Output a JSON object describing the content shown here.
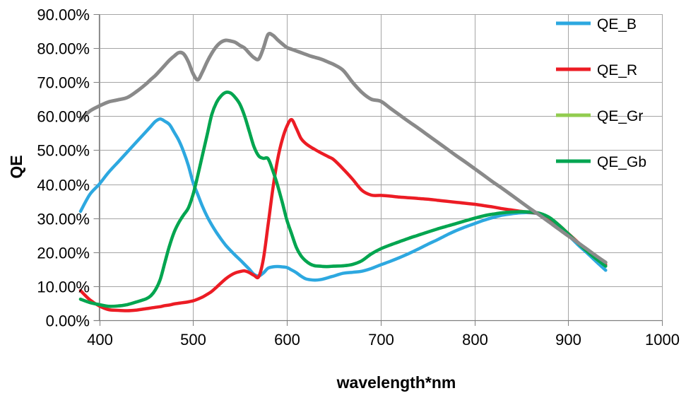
{
  "chart_data": {
    "type": "line",
    "title": "",
    "xlabel": "wavelength*nm",
    "ylabel": "QE",
    "x_range": [
      380,
      1000
    ],
    "y_range_percent": [
      0,
      90
    ],
    "grid": true,
    "legend_position": "right",
    "x_ticks": [
      400,
      500,
      600,
      700,
      800,
      900,
      1000
    ],
    "y_tick_values": [
      0,
      10,
      20,
      30,
      40,
      50,
      60,
      70,
      80,
      90
    ],
    "y_tick_labels": [
      "0.00%",
      "10.00%",
      "20.00%",
      "30.00%",
      "40.00%",
      "50.00%",
      "60.00%",
      "70.00%",
      "80.00%",
      "90.00%"
    ],
    "wavelengths_nm": [
      380,
      390,
      400,
      410,
      420,
      430,
      440,
      450,
      455,
      460,
      465,
      470,
      475,
      480,
      485,
      490,
      495,
      500,
      505,
      510,
      515,
      520,
      525,
      530,
      535,
      540,
      545,
      550,
      555,
      560,
      565,
      570,
      575,
      580,
      585,
      590,
      595,
      600,
      605,
      610,
      615,
      620,
      625,
      630,
      635,
      640,
      645,
      650,
      660,
      670,
      680,
      690,
      700,
      710,
      720,
      730,
      740,
      750,
      760,
      770,
      780,
      790,
      800,
      810,
      820,
      830,
      840,
      850,
      860,
      870,
      880,
      890,
      900,
      910,
      920,
      930,
      940
    ],
    "series": [
      {
        "id": "qe_b",
        "name": "QE_B",
        "color": "#2DA8E0",
        "in_legend": true,
        "values": [
          32,
          37,
          40,
          43.5,
          46.5,
          49.5,
          52.5,
          55.5,
          57,
          58.5,
          59.2,
          58.5,
          57.5,
          55.2,
          52.8,
          49.5,
          45.5,
          40.5,
          37,
          33.5,
          30.5,
          28,
          25.8,
          23.8,
          22,
          20.5,
          19.1,
          17.8,
          16.4,
          15,
          13.5,
          13,
          13.9,
          15.3,
          15.7,
          15.8,
          15.7,
          15.5,
          14.8,
          14,
          13,
          12.2,
          11.9,
          11.8,
          11.9,
          12.2,
          12.6,
          13,
          13.8,
          14.1,
          14.4,
          15.2,
          16.3,
          17.3,
          18.4,
          19.6,
          20.9,
          22.3,
          23.6,
          25,
          26.3,
          27.4,
          28.4,
          29.4,
          30.2,
          30.9,
          31.3,
          31.6,
          31.6,
          31.2,
          29.8,
          27.5,
          25,
          22.3,
          19.8,
          17.2,
          14.7
        ]
      },
      {
        "id": "qe_r",
        "name": "QE_R",
        "color": "#EC1C24",
        "in_legend": true,
        "values": [
          8.7,
          6,
          4.2,
          3.1,
          2.9,
          2.8,
          3,
          3.4,
          3.6,
          3.8,
          4,
          4.3,
          4.5,
          4.8,
          5,
          5.2,
          5.4,
          5.7,
          6.2,
          6.8,
          7.6,
          8.5,
          9.7,
          11,
          12.2,
          13.2,
          13.9,
          14.3,
          14.5,
          14,
          13.2,
          12.8,
          18,
          28,
          38.5,
          47,
          53,
          57,
          59,
          56.5,
          53.5,
          52,
          51,
          50.2,
          49.4,
          48.7,
          48,
          47.2,
          44.5,
          41.5,
          38.2,
          36.8,
          36.7,
          36.5,
          36.2,
          36,
          35.8,
          35.6,
          35.3,
          35,
          34.7,
          34.4,
          34.1,
          33.7,
          33.3,
          32.8,
          32.4,
          32,
          31.7,
          31.3,
          30,
          28,
          25.5,
          23,
          20.5,
          18.3,
          16.3
        ]
      },
      {
        "id": "qe_gr",
        "name": "QE_Gr",
        "color": "#92CC4F",
        "in_legend": true,
        "values": [
          6.2,
          5.2,
          4.6,
          4.1,
          4.2,
          4.6,
          5.4,
          6.3,
          7.2,
          9,
          12,
          17,
          22,
          26,
          28.8,
          31,
          33,
          37,
          42.5,
          48.5,
          54.5,
          60.5,
          64,
          66,
          67,
          66.8,
          65.5,
          63.5,
          60,
          55.5,
          51,
          48.3,
          47.6,
          47.5,
          44,
          39.8,
          34.8,
          29.5,
          25.5,
          21.5,
          19,
          17.5,
          16.5,
          16,
          15.9,
          15.8,
          15.8,
          15.9,
          16,
          16.4,
          17.5,
          19.5,
          21,
          22.1,
          23.1,
          24.1,
          25,
          25.9,
          26.8,
          27.6,
          28.4,
          29.2,
          30,
          30.7,
          31.2,
          31.6,
          31.8,
          31.9,
          31.8,
          31.4,
          30.2,
          28,
          25.4,
          22.8,
          20.3,
          18,
          15.9
        ]
      },
      {
        "id": "qe_gb",
        "name": "QE_Gb",
        "color": "#00A551",
        "in_legend": true,
        "values": [
          6.2,
          5.2,
          4.6,
          4.1,
          4.2,
          4.6,
          5.4,
          6.3,
          7.2,
          9,
          12,
          17,
          22,
          26,
          28.8,
          31,
          33,
          37,
          42.5,
          48.5,
          54.5,
          60.5,
          64,
          66,
          67,
          66.8,
          65.5,
          63.5,
          60,
          55.5,
          51,
          48.3,
          47.6,
          47.5,
          44,
          39.8,
          34.8,
          29.5,
          25.5,
          21.5,
          19,
          17.5,
          16.5,
          16,
          15.9,
          15.8,
          15.8,
          15.9,
          16,
          16.4,
          17.5,
          19.5,
          21,
          22.1,
          23.1,
          24.1,
          25,
          25.9,
          26.8,
          27.6,
          28.4,
          29.2,
          30,
          30.7,
          31.2,
          31.6,
          31.8,
          31.9,
          31.8,
          31.4,
          30.2,
          28,
          25.4,
          22.8,
          20.3,
          18,
          15.9
        ]
      },
      {
        "id": "gray_unlabeled",
        "name": "",
        "color": "#8A8A8A",
        "in_legend": false,
        "values": [
          59,
          61.5,
          63,
          64.2,
          64.8,
          65.5,
          67.3,
          69.5,
          70.8,
          72,
          73.5,
          75,
          76.5,
          77.7,
          78.7,
          78.3,
          76,
          72.5,
          70.7,
          73,
          76,
          78.5,
          80.5,
          81.8,
          82.3,
          82.1,
          81.7,
          80.8,
          80,
          78.5,
          77.2,
          76.8,
          80,
          84,
          83.8,
          82.5,
          81.3,
          80.2,
          79.7,
          79.2,
          78.7,
          78.2,
          77.7,
          77.3,
          76.9,
          76.4,
          75.8,
          75.2,
          73.5,
          70,
          67,
          65,
          64.4,
          62.4,
          60.4,
          58.4,
          56.5,
          54.5,
          52.5,
          50.5,
          48.5,
          46.6,
          44.6,
          42.6,
          40.6,
          38.7,
          36.7,
          34.7,
          32.7,
          30.8,
          28.8,
          26.8,
          24.8,
          22.9,
          20.9,
          18.9,
          17
        ]
      }
    ],
    "colors": {
      "gridline": "#A5A5A5",
      "axis": "#7F7F7F",
      "text": "#000000",
      "background": "#FFFFFF"
    }
  }
}
